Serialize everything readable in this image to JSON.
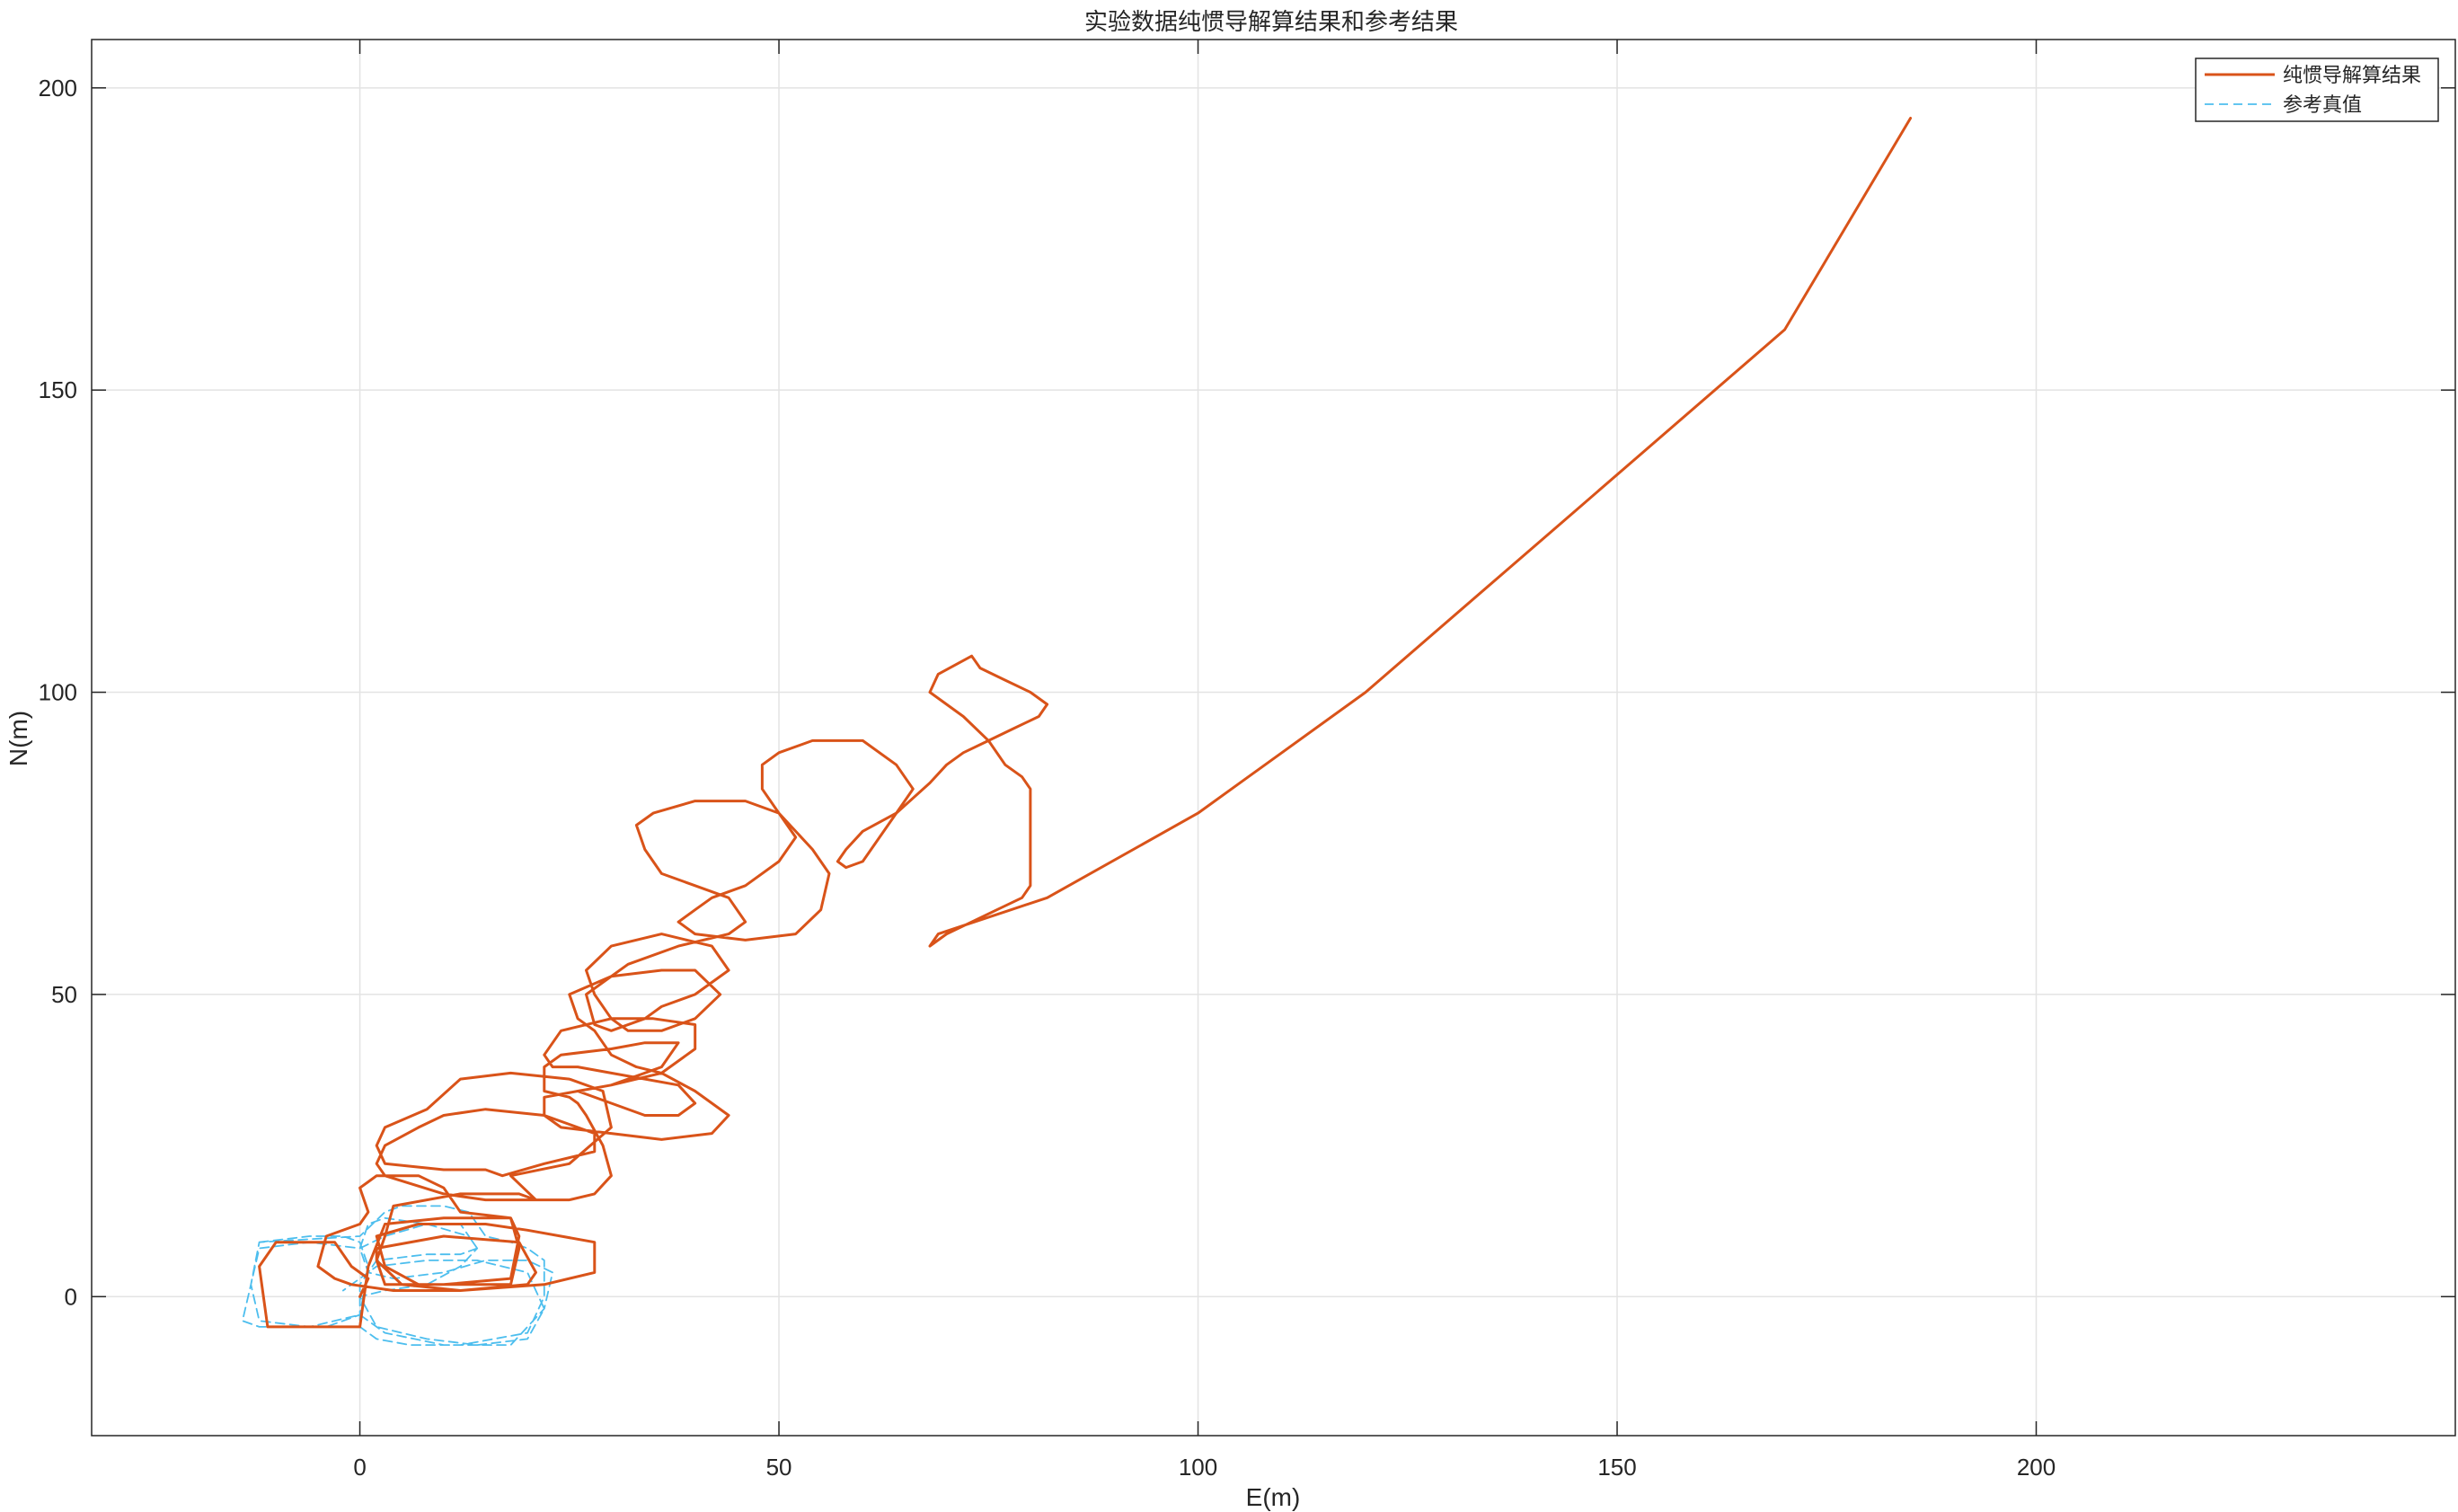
{
  "chart_data": {
    "type": "line",
    "title": "实验数据纯惯导解算结果和参考结果",
    "xlabel": "E(m)",
    "ylabel": "N(m)",
    "xlim": [
      -32,
      250
    ],
    "ylim": [
      -23,
      208
    ],
    "xticks": [
      0,
      50,
      100,
      150,
      200
    ],
    "yticks": [
      0,
      50,
      100,
      150,
      200
    ],
    "grid": true,
    "legend_position": "top-right",
    "colors": {
      "ins": "#D95319",
      "ref": "#4DBEEE",
      "grid": "#E3E3E3",
      "axis": "#262626"
    },
    "series": [
      {
        "name": "纯惯导解算结果",
        "style": "solid",
        "x": [
          0,
          1,
          -1,
          -3,
          -10,
          -12,
          -11,
          0,
          1,
          3,
          10,
          18,
          19,
          18,
          10,
          3,
          2,
          2,
          10,
          19,
          21,
          20,
          12,
          4,
          -1,
          -3,
          -5,
          -4,
          0,
          1,
          0,
          1,
          2,
          7,
          10,
          12,
          18,
          19,
          18,
          10,
          7,
          3,
          2,
          7,
          15,
          20,
          28,
          28,
          22,
          12,
          5,
          2,
          3,
          4,
          12,
          19,
          21,
          18,
          25,
          30,
          29,
          25,
          18,
          12,
          8,
          3,
          2,
          3,
          10,
          15,
          17,
          22,
          28,
          28,
          22,
          15,
          10,
          7,
          3,
          2,
          3,
          10,
          15,
          20,
          25,
          28,
          30,
          29,
          27,
          26,
          25,
          22,
          22,
          24,
          30,
          34,
          38,
          36,
          30,
          26,
          30,
          34,
          38,
          40,
          38,
          30,
          26,
          23,
          22,
          24,
          30,
          35,
          40,
          40,
          36,
          30,
          26,
          22,
          22,
          24,
          30,
          36,
          42,
          44,
          40,
          36,
          33,
          30,
          28,
          26,
          25,
          30,
          36,
          40,
          43,
          40,
          36,
          32,
          30,
          28,
          27,
          30,
          36,
          42,
          44,
          40,
          36,
          34,
          30,
          28,
          27,
          32,
          38,
          44,
          46,
          44,
          40,
          36,
          34,
          33,
          35,
          40,
          46,
          50,
          52,
          50,
          46,
          42,
          40,
          38,
          40,
          46,
          52,
          55,
          56,
          54,
          50,
          48,
          48,
          50,
          54,
          60,
          64,
          66,
          64,
          60,
          58,
          57,
          58,
          60,
          62,
          64,
          68,
          70,
          72,
          75,
          78,
          81,
          82,
          80,
          77,
          74,
          73,
          69,
          68,
          72,
          75,
          77,
          79,
          80,
          80,
          80,
          80,
          80,
          80,
          79,
          76,
          73,
          70,
          68,
          69,
          82,
          100,
          120,
          145,
          170,
          185
        ],
        "y": [
          0,
          3,
          5,
          9,
          9,
          5,
          -5,
          -5,
          5,
          12,
          13,
          13,
          10,
          3,
          2,
          2,
          6,
          8,
          10,
          9,
          4,
          2,
          1,
          1,
          2,
          3,
          5,
          10,
          12,
          14,
          18,
          19,
          20,
          20,
          18,
          14,
          13,
          8,
          2,
          2,
          2,
          5,
          10,
          12,
          12,
          11,
          9,
          4,
          2,
          1,
          2,
          6,
          10,
          15,
          17,
          17,
          16,
          20,
          22,
          28,
          34,
          36,
          37,
          36,
          31,
          28,
          25,
          22,
          21,
          21,
          20,
          22,
          24,
          27,
          30,
          31,
          30,
          28,
          25,
          22,
          20,
          17,
          16,
          16,
          16,
          17,
          20,
          25,
          30,
          32,
          33,
          34,
          38,
          40,
          41,
          42,
          42,
          38,
          35,
          34,
          32,
          30,
          30,
          32,
          35,
          37,
          38,
          38,
          40,
          44,
          46,
          46,
          45,
          41,
          37,
          35,
          34,
          33,
          30,
          28,
          27,
          26,
          27,
          30,
          34,
          37,
          38,
          40,
          44,
          46,
          50,
          53,
          54,
          54,
          50,
          46,
          44,
          44,
          46,
          50,
          54,
          58,
          60,
          58,
          54,
          50,
          48,
          46,
          44,
          45,
          50,
          55,
          58,
          60,
          62,
          66,
          68,
          70,
          74,
          78,
          80,
          82,
          82,
          80,
          76,
          72,
          68,
          66,
          64,
          62,
          60,
          59,
          60,
          64,
          70,
          74,
          80,
          84,
          88,
          90,
          92,
          92,
          88,
          84,
          80,
          77,
          74,
          72,
          71,
          72,
          76,
          80,
          85,
          88,
          90,
          92,
          94,
          96,
          98,
          100,
          102,
          104,
          106,
          103,
          100,
          96,
          92,
          88,
          86,
          84,
          81,
          78,
          75,
          72,
          68,
          66,
          64,
          62,
          60,
          58,
          60,
          66,
          80,
          100,
          130,
          160,
          195
        ]
      },
      {
        "name": "参考真值",
        "style": "dashed",
        "x": [
          -12,
          -6,
          -2,
          0,
          1,
          0,
          -4,
          -12,
          -14,
          -13,
          -12,
          0,
          3,
          5,
          10,
          13,
          15,
          18,
          20,
          22,
          22,
          20,
          12,
          6,
          2,
          0,
          0,
          2,
          8,
          12,
          14,
          13,
          8,
          3,
          1,
          0,
          1,
          4,
          10,
          15,
          20,
          23,
          22,
          18,
          10,
          3,
          0,
          -6,
          -12,
          -13,
          -12,
          -6,
          0,
          3,
          8,
          12,
          14,
          12,
          8,
          3,
          0,
          2,
          8,
          14,
          20,
          22,
          20,
          14,
          8,
          2,
          0,
          -2
        ],
        "y": [
          9,
          10,
          10,
          9,
          5,
          -3,
          -5,
          -5,
          -4,
          2,
          9,
          10,
          14,
          15,
          15,
          14,
          10,
          9,
          8,
          6,
          0,
          -6,
          -8,
          -8,
          -7,
          -5,
          2,
          6,
          7,
          7,
          8,
          10,
          12,
          13,
          12,
          8,
          4,
          3,
          4,
          6,
          6,
          4,
          -2,
          -8,
          -8,
          -6,
          -3,
          -5,
          -4,
          2,
          8,
          9,
          8,
          10,
          12,
          12,
          8,
          5,
          2,
          1,
          0,
          -5,
          -7,
          -8,
          -7,
          -2,
          4,
          6,
          6,
          5,
          3,
          1
        ]
      }
    ]
  }
}
